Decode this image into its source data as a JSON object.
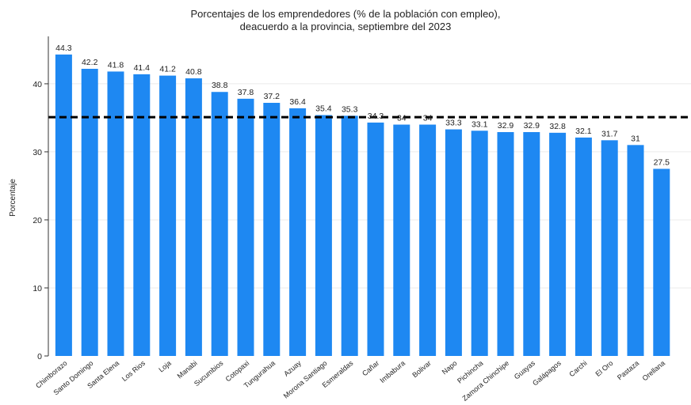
{
  "chart_data": {
    "type": "bar",
    "title": "Porcentajes de los emprendedores (% de la población con empleo),",
    "subtitle": "deacuerdo a la provincia, septiembre del 2023",
    "xlabel": "",
    "ylabel": "Porcentaje",
    "ylim": [
      0,
      46.5
    ],
    "yticks": [
      "0",
      "10",
      "20",
      "30",
      "40"
    ],
    "grid": true,
    "reference_line": 35.1,
    "categories": [
      "Chimborazo",
      "Santo Domingo",
      "Santa Elena",
      "Los Rios",
      "Loja",
      "Manabi",
      "Sucumbios",
      "Cotopaxi",
      "Tungurahua",
      "Azuay",
      "Morona Santiago",
      "Esmeraldas",
      "Cañar",
      "Imbabura",
      "Bolivar",
      "Napo",
      "Pichincha",
      "Zamora Chinchipe",
      "Guayas",
      "Galápagos",
      "Carchi",
      "El Oro",
      "Pastaza",
      "Orellana"
    ],
    "values": [
      44.3,
      42.2,
      41.8,
      41.4,
      41.2,
      40.8,
      38.8,
      37.8,
      37.2,
      36.4,
      35.4,
      35.3,
      34.3,
      34,
      34,
      33.3,
      33.1,
      32.9,
      32.9,
      32.8,
      32.1,
      31.7,
      31,
      27.5
    ],
    "value_labels": [
      "44.3",
      "42.2",
      "41.8",
      "41.4",
      "41.2",
      "40.8",
      "38.8",
      "37.8",
      "37.2",
      "36.4",
      "35.4",
      "35.3",
      "34.3",
      "34",
      "34",
      "33.3",
      "33.1",
      "32.9",
      "32.9",
      "32.8",
      "32.1",
      "31.7",
      "31",
      "27.5"
    ],
    "colors": {
      "bar": "#1e88f2",
      "axis": "#333333",
      "grid": "#ebebeb",
      "reference": "#000000"
    }
  }
}
